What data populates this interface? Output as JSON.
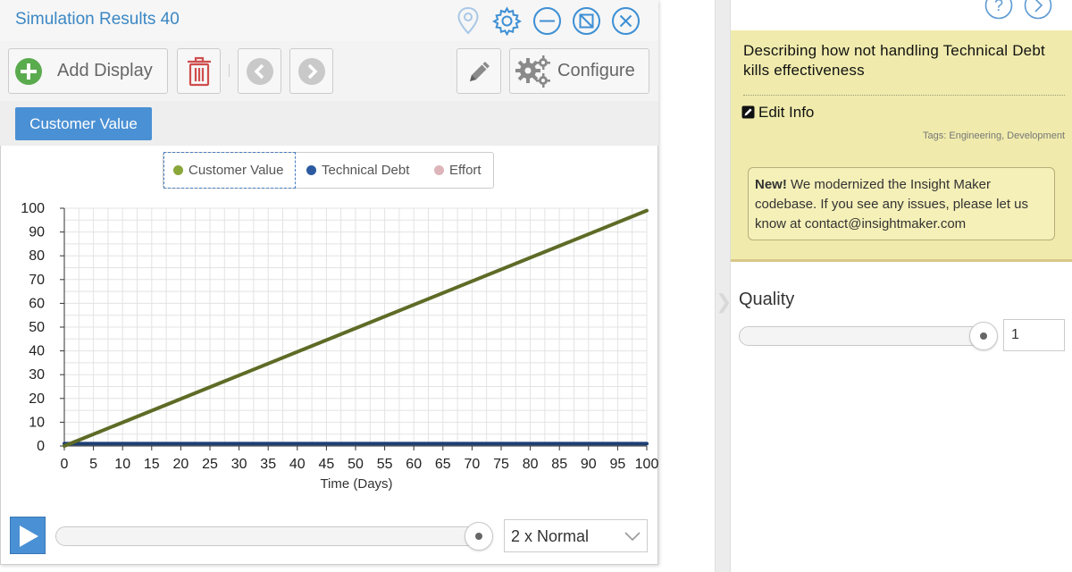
{
  "window": {
    "title": "Simulation Results 40"
  },
  "toolbar": {
    "add_display_label": "Add Display",
    "configure_label": "Configure"
  },
  "tabs": [
    {
      "label": "Customer Value"
    }
  ],
  "controls": {
    "speed_value": "2 x Normal",
    "time_progress": 1.0
  },
  "info": {
    "title": "Describing how not handling Technical Debt kills effectiveness",
    "edit_label": "Edit Info",
    "tags": "Tags: Engineering, Development",
    "notice_bold": "New!",
    "notice_text": " We modernized the Insight Maker codebase. If you see any issues, please let us know at contact@insightmaker.com"
  },
  "quality": {
    "label": "Quality",
    "value": "1",
    "slider_value": 1
  },
  "colors": {
    "accent": "#4a90d4",
    "customer_value": "#5e6b26",
    "technical_debt": "#1d3f73",
    "effort": "#d9b1b6",
    "info_bg": "#f0ebac"
  },
  "icons": [
    "location-pin-icon",
    "gear-icon",
    "minimize-icon",
    "maximize-icon",
    "close-icon",
    "add-icon",
    "trash-icon",
    "chevron-left-icon",
    "chevron-right-icon",
    "pencil-icon",
    "gears-icon",
    "help-icon",
    "chevron-right-circle-icon",
    "edit-icon",
    "play-icon",
    "chevron-down-icon"
  ],
  "chart_data": {
    "type": "line",
    "xlabel": "Time (Days)",
    "ylabel": "",
    "xlim": [
      0,
      100
    ],
    "ylim": [
      0,
      100
    ],
    "xticks": [
      0,
      5,
      10,
      15,
      20,
      25,
      30,
      35,
      40,
      45,
      50,
      55,
      60,
      65,
      70,
      75,
      80,
      85,
      90,
      95,
      100
    ],
    "yticks": [
      0,
      10,
      20,
      30,
      40,
      50,
      60,
      70,
      80,
      90,
      100
    ],
    "grid": true,
    "legend_position": "top",
    "series": [
      {
        "name": "Customer Value",
        "color": "#5e6b26",
        "x": [
          0,
          100
        ],
        "y": [
          0,
          99
        ]
      },
      {
        "name": "Technical Debt",
        "color": "#1d3f73",
        "x": [
          0,
          100
        ],
        "y": [
          1,
          1
        ]
      },
      {
        "name": "Effort",
        "color": "#d9b1b6",
        "x": [
          0,
          100
        ],
        "y": [
          1,
          1
        ]
      }
    ]
  }
}
